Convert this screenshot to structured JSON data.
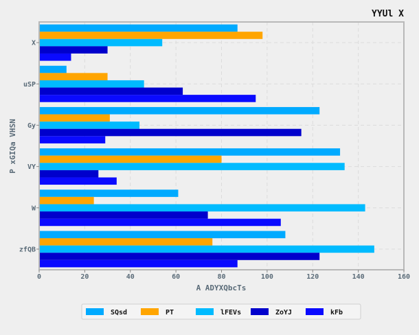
{
  "chart_data": {
    "type": "bar",
    "orientation": "horizontal",
    "title": "YYUl X",
    "xlabel": "A ADYXQbcTs",
    "ylabel": "P xGIQa VHSN",
    "xlim": [
      0,
      160
    ],
    "xticks": [
      0,
      20,
      40,
      60,
      80,
      100,
      120,
      140,
      160
    ],
    "grid": true,
    "legend_position": "bottom",
    "categories": [
      "X",
      "uSP",
      "Gy",
      "VY",
      "W",
      "zfQB"
    ],
    "series": [
      {
        "name": "SQsd",
        "color": "#00aaff",
        "values": [
          87,
          12,
          123,
          132,
          61,
          108
        ]
      },
      {
        "name": "PT",
        "color": "#ffa500",
        "values": [
          98,
          30,
          31,
          80,
          24,
          76
        ]
      },
      {
        "name": "lFEVs",
        "color": "#00bbff",
        "values": [
          54,
          46,
          44,
          134,
          143,
          147
        ]
      },
      {
        "name": "ZoYJ",
        "color": "#0000cc",
        "values": [
          30,
          63,
          115,
          26,
          74,
          123
        ]
      },
      {
        "name": "kFb",
        "color": "#0a0aff",
        "values": [
          14,
          95,
          29,
          34,
          106,
          87
        ]
      }
    ]
  }
}
